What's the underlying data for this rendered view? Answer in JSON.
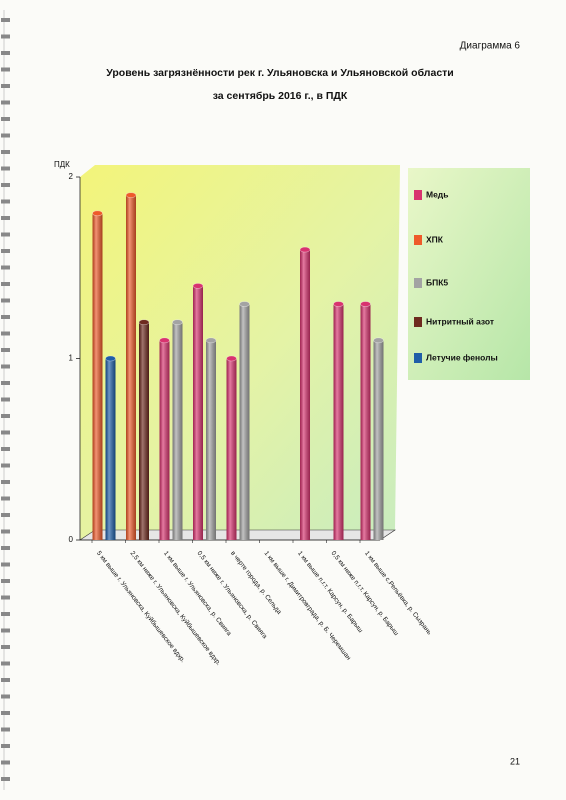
{
  "header": "Диаграмма 6",
  "page_number": "21",
  "chart_data": {
    "type": "bar",
    "title": "Уровень загрязнённости рек г. Ульяновска и Ульяновской области",
    "subtitle": "за сентябрь 2016 г., в ПДК",
    "y_label": "ПДК",
    "categories": [
      "5 км выше г. Ульяновска, Куйбышевское вдхр.",
      "2,5 км ниже г. Ульяновска, Куйбышевское вдхр.",
      "1 км выше г. Ульяновска, р. Свияга",
      "0,5 км ниже г. Ульяновска, р. Свияга",
      "в черте города, р. Сельда",
      "1 км выше г. Димитровграда, р. Б. Черемшан",
      "1 км выше п.г.т. Карсун, р. Барыш",
      "0,5 км ниже п.г.т. Карсун, р. Барыш",
      "1 км выше с.Репьёвка, р. Сызрань"
    ],
    "series": [
      {
        "name": "Медь",
        "color": "#d8336f",
        "values": [
          null,
          null,
          1.1,
          1.4,
          1.0,
          null,
          1.6,
          1.3,
          1.3
        ]
      },
      {
        "name": "ХПК",
        "color": "#ee5a2a",
        "values": [
          1.8,
          1.9,
          null,
          null,
          null,
          null,
          null,
          null,
          null
        ]
      },
      {
        "name": "БПК5",
        "color": "#a3a3a3",
        "values": [
          null,
          null,
          1.2,
          1.1,
          1.3,
          null,
          null,
          null,
          1.1
        ]
      },
      {
        "name": "Нитритный азот",
        "color": "#6e2a1f",
        "values": [
          null,
          1.2,
          null,
          null,
          null,
          null,
          null,
          null,
          null
        ]
      },
      {
        "name": "Летучие фенолы",
        "color": "#1f5ea8",
        "values": [
          1.0,
          null,
          null,
          null,
          null,
          null,
          null,
          null,
          null
        ]
      }
    ],
    "ylim": [
      0,
      2
    ],
    "yticks": [
      0,
      1,
      2
    ],
    "legend": "right"
  }
}
